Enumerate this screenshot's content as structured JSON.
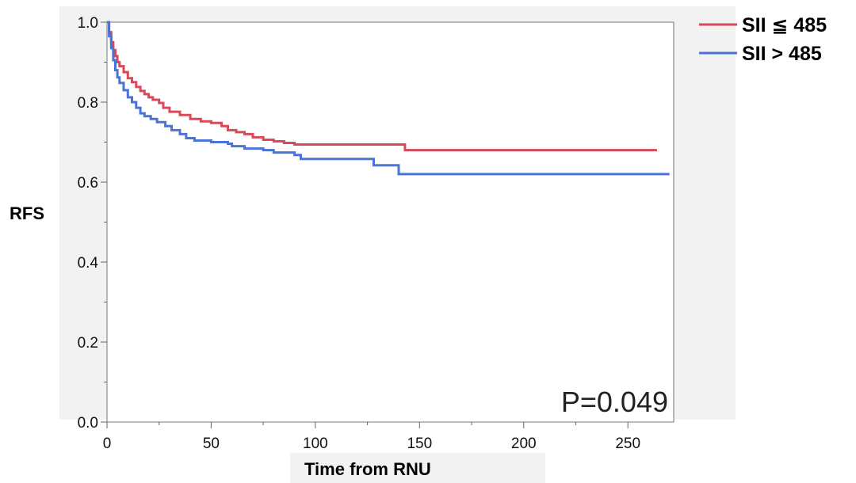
{
  "chart_data": {
    "type": "line",
    "step": true,
    "ylabel": "RFS",
    "xlabel": "Time from RNU",
    "xlim": [
      0,
      272
    ],
    "ylim": [
      0,
      1.0
    ],
    "x_ticks": [
      0,
      50,
      100,
      150,
      200,
      250
    ],
    "y_ticks": [
      0.0,
      0.2,
      0.4,
      0.6,
      0.8,
      1.0
    ],
    "x_tick_labels": [
      "0",
      "50",
      "100",
      "150",
      "200",
      "250"
    ],
    "y_tick_labels": [
      "0.0",
      "0.2",
      "0.4",
      "0.6",
      "0.8",
      "1.0"
    ],
    "grid": false,
    "legend_position": "outside-top-right",
    "annotation": "P=0.049",
    "series": [
      {
        "name": "SII ≦ 485",
        "color": "#d84a5a",
        "points": [
          [
            0,
            1.0
          ],
          [
            1,
            0.975
          ],
          [
            2,
            0.95
          ],
          [
            3,
            0.93
          ],
          [
            4,
            0.915
          ],
          [
            5,
            0.9
          ],
          [
            6,
            0.89
          ],
          [
            8,
            0.875
          ],
          [
            10,
            0.86
          ],
          [
            12,
            0.85
          ],
          [
            14,
            0.838
          ],
          [
            16,
            0.828
          ],
          [
            18,
            0.82
          ],
          [
            20,
            0.812
          ],
          [
            22,
            0.806
          ],
          [
            25,
            0.798
          ],
          [
            27,
            0.786
          ],
          [
            30,
            0.776
          ],
          [
            35,
            0.768
          ],
          [
            40,
            0.758
          ],
          [
            45,
            0.752
          ],
          [
            50,
            0.748
          ],
          [
            55,
            0.74
          ],
          [
            58,
            0.73
          ],
          [
            62,
            0.725
          ],
          [
            66,
            0.72
          ],
          [
            70,
            0.712
          ],
          [
            75,
            0.706
          ],
          [
            80,
            0.702
          ],
          [
            85,
            0.698
          ],
          [
            90,
            0.694
          ],
          [
            143,
            0.68
          ],
          [
            264,
            0.68
          ]
        ]
      },
      {
        "name": "SII > 485",
        "color": "#4a73d8",
        "points": [
          [
            0,
            1.0
          ],
          [
            1,
            0.965
          ],
          [
            2,
            0.935
          ],
          [
            3,
            0.905
          ],
          [
            4,
            0.88
          ],
          [
            5,
            0.862
          ],
          [
            6,
            0.848
          ],
          [
            8,
            0.83
          ],
          [
            10,
            0.812
          ],
          [
            12,
            0.8
          ],
          [
            14,
            0.786
          ],
          [
            16,
            0.772
          ],
          [
            18,
            0.765
          ],
          [
            21,
            0.758
          ],
          [
            24,
            0.75
          ],
          [
            28,
            0.74
          ],
          [
            31,
            0.73
          ],
          [
            35,
            0.72
          ],
          [
            38,
            0.71
          ],
          [
            42,
            0.704
          ],
          [
            50,
            0.7
          ],
          [
            58,
            0.696
          ],
          [
            60,
            0.69
          ],
          [
            66,
            0.684
          ],
          [
            75,
            0.68
          ],
          [
            80,
            0.674
          ],
          [
            90,
            0.668
          ],
          [
            93,
            0.658
          ],
          [
            105,
            0.658
          ],
          [
            128,
            0.642
          ],
          [
            140,
            0.62
          ],
          [
            270,
            0.62
          ]
        ]
      }
    ]
  }
}
